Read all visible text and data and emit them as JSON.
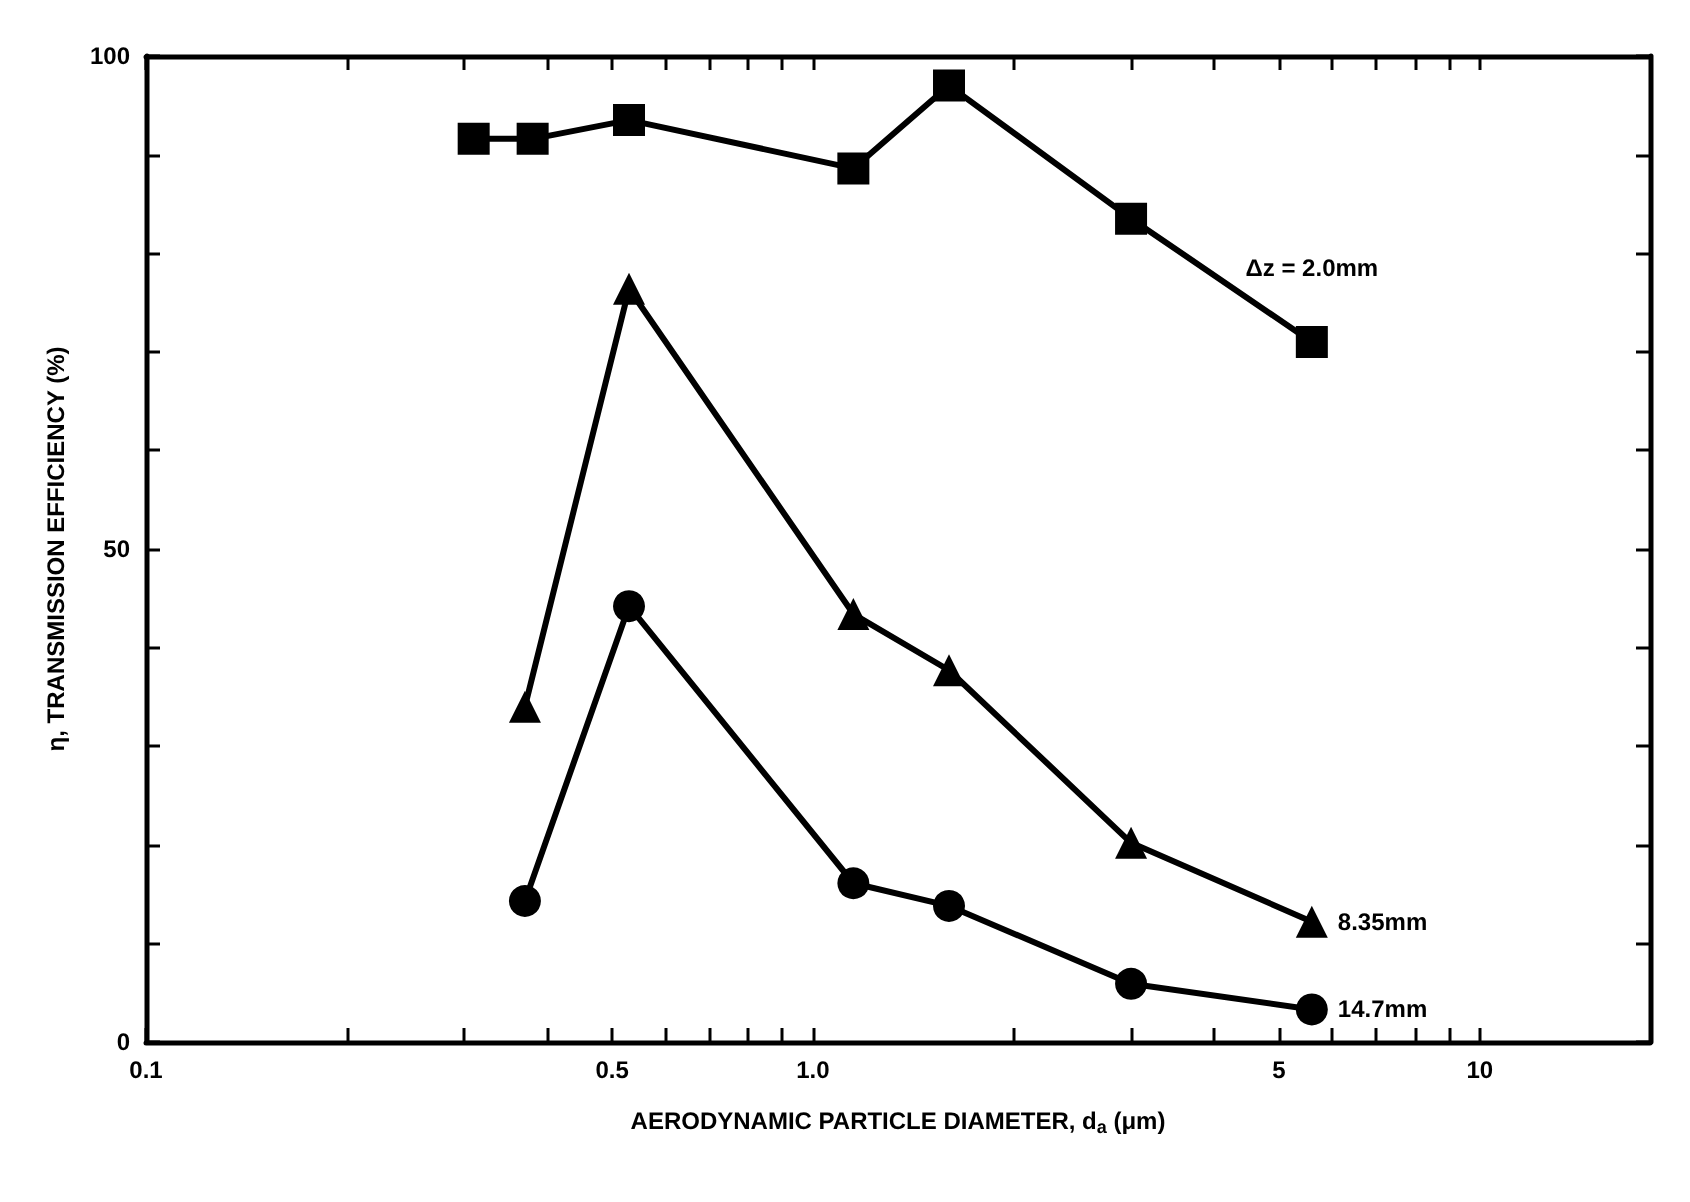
{
  "chart_data": {
    "type": "line",
    "xlabel": "AERODYNAMIC PARTICLE DIAMETER, d$_{a}$ (μm)",
    "ylabel": "η, TRANSMISSION EFFICIENCY (%)",
    "log": "x",
    "xlim": [
      0.1,
      18
    ],
    "ylim": [
      0,
      100
    ],
    "xticks": [
      0.1,
      {
        "value": 0.2,
        "label": null
      },
      {
        "value": 0.3,
        "label": null
      },
      {
        "value": 0.4,
        "label": null
      },
      0.5,
      {
        "value": 0.6,
        "label": null
      },
      {
        "value": 0.7,
        "label": null
      },
      {
        "value": 0.8,
        "label": null
      },
      {
        "value": 0.9,
        "label": null
      },
      {
        "value": 1,
        "label": "1.0"
      },
      {
        "value": 2,
        "label": null
      },
      {
        "value": 3,
        "label": null
      },
      {
        "value": 4,
        "label": null
      },
      5,
      {
        "value": 6,
        "label": null
      },
      {
        "value": 7,
        "label": null
      },
      {
        "value": 8,
        "label": null
      },
      {
        "value": 9,
        "label": null
      },
      10
    ],
    "yticks": [
      0,
      {
        "value": 10,
        "label": null
      },
      {
        "value": 20,
        "label": null
      },
      {
        "value": 30,
        "label": null
      },
      {
        "value": 40,
        "label": null
      },
      50,
      {
        "value": 60,
        "label": null
      },
      {
        "value": 70,
        "label": null
      },
      {
        "value": 80,
        "label": null
      },
      {
        "value": 90,
        "label": null
      },
      100
    ],
    "grid": false,
    "line_style": "solid",
    "series": [
      {
        "name": "Δz = 2.0mm",
        "color": "#000000",
        "marker": "square",
        "x": [
          0.31,
          0.38,
          0.53,
          1.15,
          1.6,
          3.0,
          5.6
        ],
        "values": [
          91.6,
          91.6,
          93.5,
          88.6,
          97,
          83.5,
          71
        ]
      },
      {
        "name": "8.35mm",
        "color": "#000000",
        "marker": "triangle",
        "x": [
          0.37,
          0.53,
          1.15,
          1.6,
          3.0,
          5.6
        ],
        "values": [
          34,
          76.4,
          43.4,
          37.7,
          20.2,
          12.2
        ]
      },
      {
        "name": "14.7mm",
        "color": "#000000",
        "marker": "circle",
        "x": [
          0.37,
          0.53,
          1.15,
          1.6,
          3.0,
          5.6
        ],
        "values": [
          14.3,
          44.2,
          16.1,
          13.8,
          5.9,
          3.3
        ]
      }
    ]
  }
}
